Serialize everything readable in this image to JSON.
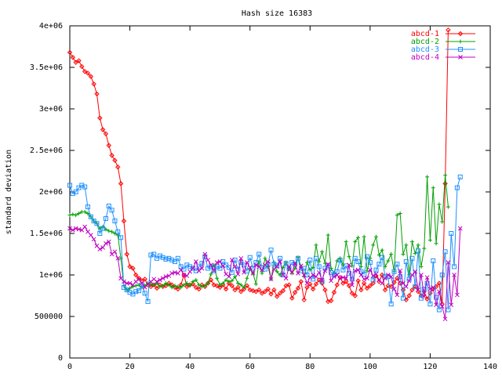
{
  "chart_data": {
    "type": "line",
    "title": "Hash size 16383",
    "xlabel": "",
    "ylabel": "standard deviation",
    "xlim": [
      0,
      140
    ],
    "ylim": [
      0,
      4000000
    ],
    "grid": false,
    "legend_position": "top-right",
    "x_ticks": [
      0,
      20,
      40,
      60,
      80,
      100,
      120,
      140
    ],
    "x_tick_labels": [
      "0",
      "20",
      "40",
      "60",
      "80",
      "100",
      "120",
      "140"
    ],
    "y_ticks": [
      0,
      500000,
      1000000,
      1500000,
      2000000,
      2500000,
      3000000,
      3500000,
      4000000
    ],
    "y_tick_labels": [
      "0",
      "500000",
      "1e+06",
      "1.5e+06",
      "2e+06",
      "2.5e+06",
      "3e+06",
      "3.5e+06",
      "4e+06"
    ],
    "series": [
      {
        "name": "abcd-1",
        "color": "#ff0000",
        "marker": "diamond",
        "values": [
          3680000,
          3620000,
          3560000,
          3580000,
          3510000,
          3450000,
          3430000,
          3390000,
          3300000,
          3180000,
          2890000,
          2750000,
          2700000,
          2560000,
          2440000,
          2380000,
          2300000,
          2100000,
          1650000,
          1250000,
          1100000,
          1080000,
          1000000,
          960000,
          930000,
          950000,
          880000,
          860000,
          880000,
          840000,
          880000,
          860000,
          870000,
          900000,
          880000,
          850000,
          830000,
          880000,
          1000000,
          860000,
          880000,
          890000,
          850000,
          830000,
          880000,
          860000,
          900000,
          940000,
          880000,
          870000,
          850000,
          880000,
          830000,
          900000,
          870000,
          820000,
          850000,
          800000,
          830000,
          870000,
          820000,
          810000,
          800000,
          820000,
          780000,
          800000,
          830000,
          770000,
          820000,
          740000,
          780000,
          810000,
          870000,
          880000,
          720000,
          790000,
          840000,
          920000,
          700000,
          850000,
          890000,
          830000,
          890000,
          940000,
          900000,
          820000,
          680000,
          690000,
          790000,
          880000,
          970000,
          900000,
          920000,
          870000,
          780000,
          750000,
          930000,
          820000,
          900000,
          840000,
          870000,
          900000,
          990000,
          920000,
          1000000,
          820000,
          870000,
          860000,
          910000,
          960000,
          900000,
          820000,
          700000,
          750000,
          820000,
          860000,
          800000,
          750000,
          800000,
          710000,
          780000,
          830000,
          860000,
          900000,
          650000,
          2100000,
          3950000
        ]
      },
      {
        "name": "abcd-2",
        "color": "#00a000",
        "marker": "plus",
        "values": [
          1720000,
          1730000,
          1720000,
          1740000,
          1760000,
          1760000,
          1740000,
          1700000,
          1650000,
          1620000,
          1560000,
          1580000,
          1550000,
          1530000,
          1520000,
          1500000,
          1480000,
          1200000,
          870000,
          820000,
          840000,
          860000,
          870000,
          880000,
          850000,
          870000,
          900000,
          890000,
          880000,
          900000,
          860000,
          870000,
          900000,
          880000,
          850000,
          870000,
          860000,
          850000,
          880000,
          900000,
          870000,
          920000,
          940000,
          880000,
          860000,
          870000,
          900000,
          1010000,
          1120000,
          960000,
          880000,
          900000,
          940000,
          920000,
          930000,
          980000,
          900000,
          880000,
          850000,
          960000,
          1070000,
          1020000,
          890000,
          1160000,
          1020000,
          1200000,
          1100000,
          950000,
          1150000,
          1040000,
          1000000,
          1090000,
          1150000,
          1070000,
          1020000,
          1080000,
          1210000,
          1100000,
          980000,
          1150000,
          1060000,
          1090000,
          1360000,
          1160000,
          1280000,
          1140000,
          1480000,
          1080000,
          1020000,
          1170000,
          1200000,
          1120000,
          1400000,
          1220000,
          1110000,
          1400000,
          1450000,
          1100000,
          1460000,
          1050000,
          1200000,
          1360000,
          1460000,
          1240000,
          1300000,
          1100000,
          1170000,
          1250000,
          1040000,
          1720000,
          1740000,
          1250000,
          1360000,
          1000000,
          1400000,
          1260000,
          1360000,
          1100000,
          1320000,
          2180000,
          1420000,
          2050000,
          1380000,
          1850000,
          1640000,
          2200000,
          1820000
        ]
      },
      {
        "name": "abcd-3",
        "color": "#1e90ff",
        "marker": "square",
        "values": [
          2080000,
          1980000,
          2000000,
          2050000,
          2080000,
          2060000,
          1820000,
          1700000,
          1650000,
          1620000,
          1500000,
          1560000,
          1680000,
          1830000,
          1780000,
          1650000,
          1520000,
          1450000,
          850000,
          820000,
          790000,
          770000,
          800000,
          810000,
          880000,
          780000,
          680000,
          1240000,
          1250000,
          1200000,
          1230000,
          1210000,
          1190000,
          1200000,
          1180000,
          1160000,
          1200000,
          1100000,
          1070000,
          1120000,
          1100000,
          1080000,
          1050000,
          1100000,
          1140000,
          1220000,
          1080000,
          1100000,
          1050000,
          1100000,
          1080000,
          1160000,
          1120000,
          1090000,
          1030000,
          1180000,
          1070000,
          1150000,
          1120000,
          1050000,
          1210000,
          1080000,
          1150000,
          1250000,
          1090000,
          1070000,
          1130000,
          1300000,
          1130000,
          1110000,
          1200000,
          1000000,
          1140000,
          1080000,
          1150000,
          1130000,
          1200000,
          1050000,
          1080000,
          1000000,
          1180000,
          950000,
          1200000,
          1100000,
          920000,
          1080000,
          1110000,
          1030000,
          1000000,
          1040000,
          1180000,
          1060000,
          1110000,
          1020000,
          950000,
          1200000,
          1160000,
          1040000,
          1010000,
          1220000,
          1150000,
          940000,
          1060000,
          1130000,
          1210000,
          980000,
          980000,
          650000,
          1040000,
          1130000,
          980000,
          720000,
          1160000,
          950000,
          1200000,
          860000,
          1290000,
          720000,
          830000,
          900000,
          650000,
          1170000,
          730000,
          580000,
          1000000,
          1280000,
          580000,
          1500000,
          1100000,
          2050000,
          2180000
        ]
      },
      {
        "name": "abcd-4",
        "color": "#c000c0",
        "marker": "x",
        "values": [
          1560000,
          1540000,
          1560000,
          1550000,
          1540000,
          1580000,
          1520000,
          1480000,
          1430000,
          1350000,
          1310000,
          1330000,
          1380000,
          1400000,
          1250000,
          1280000,
          1200000,
          960000,
          920000,
          900000,
          900000,
          880000,
          920000,
          950000,
          900000,
          850000,
          890000,
          920000,
          950000,
          920000,
          940000,
          960000,
          980000,
          990000,
          1020000,
          1030000,
          1020000,
          1060000,
          1000000,
          990000,
          1040000,
          1080000,
          1160000,
          1050000,
          1080000,
          1250000,
          1180000,
          1120000,
          1050000,
          1150000,
          1160000,
          1110000,
          1010000,
          980000,
          1180000,
          1100000,
          1010000,
          1200000,
          1030000,
          1150000,
          1090000,
          1020000,
          1120000,
          1100000,
          1060000,
          1120000,
          1160000,
          950000,
          1070000,
          1100000,
          1160000,
          1000000,
          960000,
          1100000,
          1030000,
          1140000,
          1020000,
          1110000,
          1000000,
          900000,
          970000,
          1000000,
          980000,
          1030000,
          940000,
          1050000,
          1130000,
          930000,
          980000,
          1000000,
          960000,
          970000,
          960000,
          1120000,
          880000,
          1050000,
          1060000,
          1000000,
          950000,
          960000,
          1060000,
          990000,
          1010000,
          940000,
          900000,
          960000,
          1000000,
          980000,
          830000,
          760000,
          1050000,
          900000,
          860000,
          930000,
          1000000,
          1040000,
          820000,
          1000000,
          740000,
          970000,
          830000,
          850000,
          640000,
          800000,
          620000,
          470000,
          1150000,
          640000,
          1000000,
          760000,
          1560000
        ]
      }
    ]
  }
}
